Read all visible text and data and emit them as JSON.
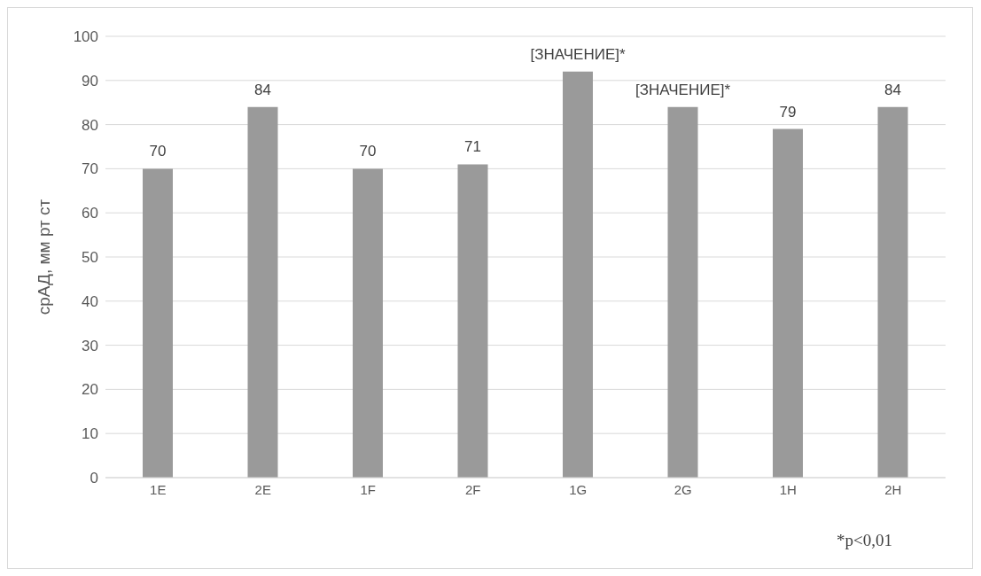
{
  "chart_data": {
    "type": "bar",
    "ylabel": "срАД, мм рт ст",
    "categories": [
      "1E",
      "2E",
      "1F",
      "2F",
      "1G",
      "2G",
      "1H",
      "2H"
    ],
    "values": [
      70,
      84,
      70,
      71,
      92,
      84,
      79,
      84
    ],
    "color": "#9a9a9a",
    "value_labels": [
      "70",
      "84",
      "70",
      "71",
      "[ЗНАЧЕНИЕ]*",
      "[ЗНАЧЕНИЕ]*",
      "79",
      "84"
    ],
    "ylim": [
      0,
      100
    ],
    "yticks": [
      0,
      10,
      20,
      30,
      40,
      50,
      60,
      70,
      80,
      90,
      100
    ],
    "grid": "y",
    "legend": false,
    "annotations": [
      "*p<0,01"
    ]
  }
}
